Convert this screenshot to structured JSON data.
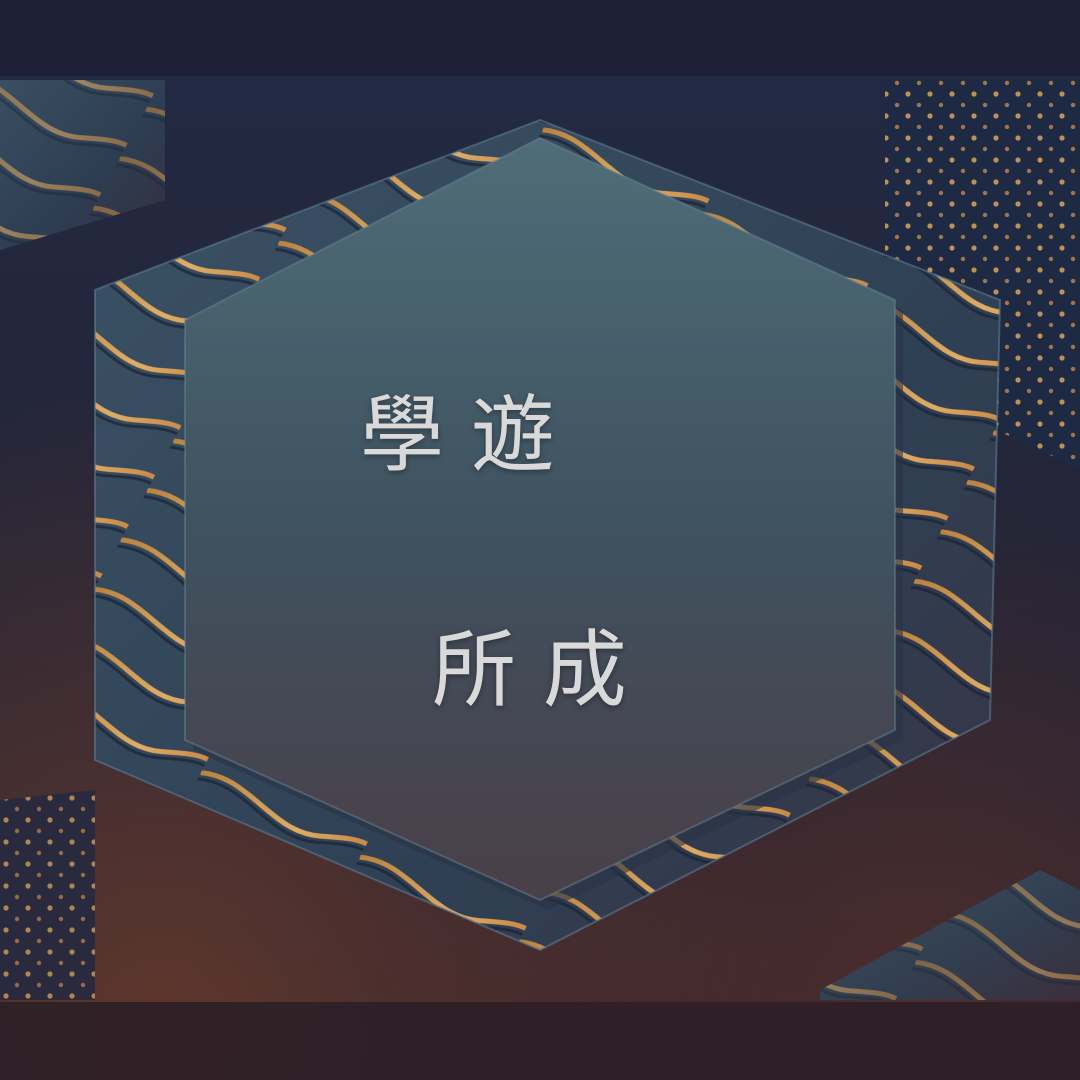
{
  "title": {
    "line1": "學 遊",
    "line2": "所 成"
  },
  "colors": {
    "frame_band": "#1d2035",
    "hexagon_face": "#465f6c",
    "wave_gold": "#e8a24a",
    "text": "#d9d9d9"
  }
}
